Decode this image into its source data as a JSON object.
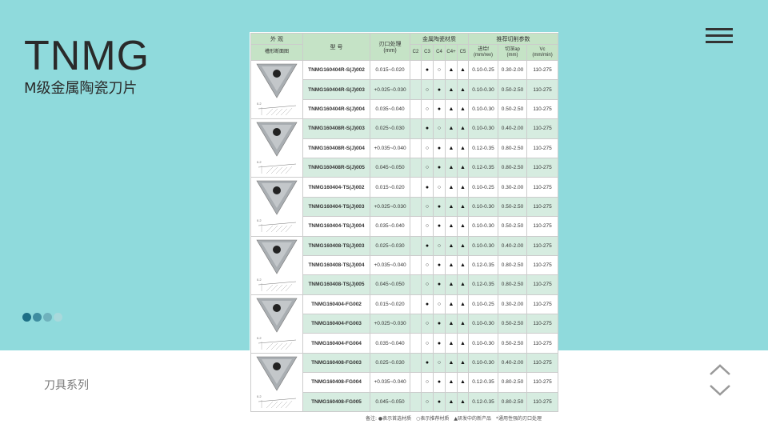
{
  "header": {
    "title": "TNMG",
    "subtitle": "M级金属陶瓷刀片",
    "menu_icon": "hamburger-menu-icon"
  },
  "footer": {
    "series_label": "刀具系列",
    "nav_icons": [
      "chevron-up-icon",
      "chevron-down-icon"
    ]
  },
  "pagination": {
    "dots": 4,
    "colors": [
      "#1e6f86",
      "#3f8da0",
      "#6fb1bc",
      "#a9d9dc"
    ]
  },
  "colors": {
    "background": "#8fdadc",
    "header_green": "#c5e3c6",
    "row_green": "#d6ece0"
  },
  "table": {
    "headers": {
      "appearance": "外 观",
      "groove_section": "槽形断面图",
      "model": "型 号",
      "edge": "刃口处理",
      "edge_unit": "(mm)",
      "material_group": "金属陶瓷材质",
      "materials": [
        "C2",
        "C3",
        "C4",
        "C4+",
        "C5"
      ],
      "params_group": "推荐切削参数",
      "feed": "进给f",
      "feed_unit": "(mm/rev)",
      "depth": "切深ap",
      "depth_unit": "(mm)",
      "speed": "Vc",
      "speed_unit": "(mm/min)"
    },
    "rows": [
      {
        "model": "TNMG160404R-S(J)002",
        "edge": "0.015~0.020",
        "m": [
          "",
          "●",
          "○",
          "▲",
          "▲"
        ],
        "f": "0.10-0.25",
        "ap": "0.30-2.00",
        "vc": "110-275"
      },
      {
        "model": "TNMG160404R-S(J)003",
        "edge": "+0.025~0.030",
        "m": [
          "",
          "○",
          "●",
          "▲",
          "▲"
        ],
        "f": "0.10-0.30",
        "ap": "0.50-2.50",
        "vc": "110-275"
      },
      {
        "model": "TNMG160404R-S(J)004",
        "edge": "0.035~0.040",
        "m": [
          "",
          "○",
          "●",
          "▲",
          "▲"
        ],
        "f": "0.10-0.30",
        "ap": "0.50-2.50",
        "vc": "110-275"
      },
      {
        "model": "TNMG160408R-S(J)003",
        "edge": "0.025~0.030",
        "m": [
          "",
          "●",
          "○",
          "▲",
          "▲"
        ],
        "f": "0.10-0.30",
        "ap": "0.40-2.00",
        "vc": "110-275"
      },
      {
        "model": "TNMG160408R-S(J)004",
        "edge": "+0.035~0.040",
        "m": [
          "",
          "○",
          "●",
          "▲",
          "▲"
        ],
        "f": "0.12-0.35",
        "ap": "0.80-2.50",
        "vc": "110-275"
      },
      {
        "model": "TNMG160408R-S(J)005",
        "edge": "0.045~0.050",
        "m": [
          "",
          "○",
          "●",
          "▲",
          "▲"
        ],
        "f": "0.12-0.35",
        "ap": "0.80-2.50",
        "vc": "110-275"
      },
      {
        "model": "TNMG160404-TS(J)002",
        "edge": "0.015~0.020",
        "m": [
          "",
          "●",
          "○",
          "▲",
          "▲"
        ],
        "f": "0.10-0.25",
        "ap": "0.30-2.00",
        "vc": "110-275"
      },
      {
        "model": "TNMG160404-TS(J)003",
        "edge": "+0.025~0.030",
        "m": [
          "",
          "○",
          "●",
          "▲",
          "▲"
        ],
        "f": "0.10-0.30",
        "ap": "0.50-2.50",
        "vc": "110-275"
      },
      {
        "model": "TNMG160404-TS(J)004",
        "edge": "0.035~0.040",
        "m": [
          "",
          "○",
          "●",
          "▲",
          "▲"
        ],
        "f": "0.10-0.30",
        "ap": "0.50-2.50",
        "vc": "110-275"
      },
      {
        "model": "TNMG160408-TS(J)003",
        "edge": "0.025~0.030",
        "m": [
          "",
          "●",
          "○",
          "▲",
          "▲"
        ],
        "f": "0.10-0.30",
        "ap": "0.40-2.00",
        "vc": "110-275"
      },
      {
        "model": "TNMG160408-TS(J)004",
        "edge": "+0.035~0.040",
        "m": [
          "",
          "○",
          "●",
          "▲",
          "▲"
        ],
        "f": "0.12-0.35",
        "ap": "0.80-2.50",
        "vc": "110-275"
      },
      {
        "model": "TNMG160408-TS(J)005",
        "edge": "0.045~0.050",
        "m": [
          "",
          "○",
          "●",
          "▲",
          "▲"
        ],
        "f": "0.12-0.35",
        "ap": "0.80-2.50",
        "vc": "110-275"
      },
      {
        "model": "TNMG160404-FG002",
        "edge": "0.015~0.020",
        "m": [
          "",
          "●",
          "○",
          "▲",
          "▲"
        ],
        "f": "0.10-0.25",
        "ap": "0.30-2.00",
        "vc": "110-275"
      },
      {
        "model": "TNMG160404-FG003",
        "edge": "+0.025~0.030",
        "m": [
          "",
          "○",
          "●",
          "▲",
          "▲"
        ],
        "f": "0.10-0.30",
        "ap": "0.50-2.50",
        "vc": "110-275"
      },
      {
        "model": "TNMG160404-FG004",
        "edge": "0.035~0.040",
        "m": [
          "",
          "○",
          "●",
          "▲",
          "▲"
        ],
        "f": "0.10-0.30",
        "ap": "0.50-2.50",
        "vc": "110-275"
      },
      {
        "model": "TNMG160408-FG003",
        "edge": "0.025~0.030",
        "m": [
          "",
          "●",
          "○",
          "▲",
          "▲"
        ],
        "f": "0.10-0.30",
        "ap": "0.40-2.00",
        "vc": "110-275"
      },
      {
        "model": "TNMG160408-FG004",
        "edge": "+0.035~0.040",
        "m": [
          "",
          "○",
          "●",
          "▲",
          "▲"
        ],
        "f": "0.12-0.35",
        "ap": "0.80-2.50",
        "vc": "110-275"
      },
      {
        "model": "TNMG160408-FG005",
        "edge": "0.045~0.050",
        "m": [
          "",
          "○",
          "●",
          "▲",
          "▲"
        ],
        "f": "0.12-0.35",
        "ap": "0.80-2.50",
        "vc": "110-275"
      }
    ],
    "note": "备注: ●表示首选材质　○表示推荐材质　▲研发中的新产品　*通用性强的刃口处理"
  }
}
